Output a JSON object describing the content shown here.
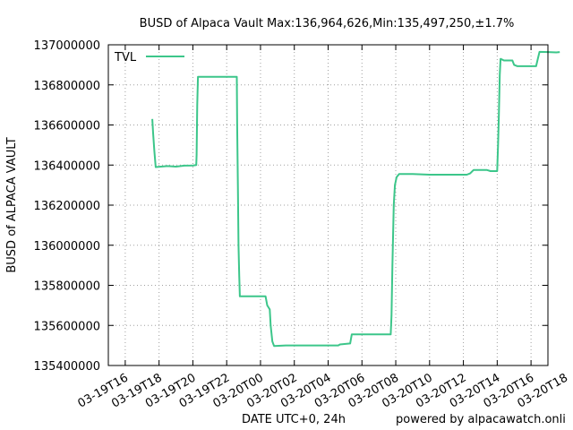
{
  "chart_data": {
    "type": "line",
    "title": "BUSD of Alpaca Vault Max:136,964,626,Min:135,497,250,±1.7%",
    "xlabel": "DATE UTC+0, 24h",
    "ylabel": "BUSD of ALPACA VAULT",
    "credit": "powered by alpacawatch.onli",
    "ylim": [
      135400000,
      137000000
    ],
    "xlim": [
      -1,
      25
    ],
    "grid": true,
    "legend_position": "top-left",
    "y_ticks": [
      "135400000",
      "135600000",
      "135800000",
      "136000000",
      "136200000",
      "136400000",
      "136600000",
      "136800000",
      "137000000"
    ],
    "x_ticks": [
      {
        "label": "03-19T16",
        "hours": 0
      },
      {
        "label": "03-19T18",
        "hours": 2
      },
      {
        "label": "03-19T20",
        "hours": 4
      },
      {
        "label": "03-19T22",
        "hours": 6
      },
      {
        "label": "03-20T00",
        "hours": 8
      },
      {
        "label": "03-20T02",
        "hours": 10
      },
      {
        "label": "03-20T04",
        "hours": 12
      },
      {
        "label": "03-20T06",
        "hours": 14
      },
      {
        "label": "03-20T08",
        "hours": 16
      },
      {
        "label": "03-20T10",
        "hours": 18
      },
      {
        "label": "03-20T12",
        "hours": 20
      },
      {
        "label": "03-20T14",
        "hours": 22
      },
      {
        "label": "03-20T16",
        "hours": 24
      },
      {
        "label": "03-20T18",
        "hours": 26
      }
    ],
    "series": [
      {
        "name": "TVL",
        "color": "#3cc68a",
        "points": [
          [
            1.6,
            136630000
          ],
          [
            1.65,
            136560000
          ],
          [
            1.72,
            136470000
          ],
          [
            1.8,
            136390000
          ],
          [
            2.5,
            136395000
          ],
          [
            3.0,
            136392000
          ],
          [
            3.5,
            136397000
          ],
          [
            4.0,
            136398000
          ],
          [
            4.2,
            136400000
          ],
          [
            4.22,
            136450000
          ],
          [
            4.26,
            136700000
          ],
          [
            4.3,
            136840000
          ],
          [
            5.0,
            136840000
          ],
          [
            6.0,
            136840000
          ],
          [
            6.6,
            136840000
          ],
          [
            6.62,
            136600000
          ],
          [
            6.66,
            136300000
          ],
          [
            6.7,
            136000000
          ],
          [
            6.74,
            135850000
          ],
          [
            6.78,
            135745000
          ],
          [
            7.5,
            135745000
          ],
          [
            8.3,
            135745000
          ],
          [
            8.4,
            135700000
          ],
          [
            8.55,
            135680000
          ],
          [
            8.6,
            135600000
          ],
          [
            8.7,
            135520000
          ],
          [
            8.8,
            135497250
          ],
          [
            9.5,
            135500000
          ],
          [
            10.5,
            135500000
          ],
          [
            11.5,
            135500000
          ],
          [
            12.6,
            135500000
          ],
          [
            12.7,
            135505000
          ],
          [
            13.3,
            135510000
          ],
          [
            13.4,
            135555000
          ],
          [
            14.5,
            135555000
          ],
          [
            15.7,
            135555000
          ],
          [
            15.75,
            135650000
          ],
          [
            15.8,
            135900000
          ],
          [
            15.88,
            136200000
          ],
          [
            15.95,
            136300000
          ],
          [
            16.05,
            136340000
          ],
          [
            16.2,
            136355000
          ],
          [
            17.0,
            136355000
          ],
          [
            18.0,
            136352000
          ],
          [
            19.0,
            136352000
          ],
          [
            20.2,
            136352000
          ],
          [
            20.4,
            136358000
          ],
          [
            20.6,
            136375000
          ],
          [
            21.4,
            136375000
          ],
          [
            21.6,
            136370000
          ],
          [
            22.0,
            136370000
          ],
          [
            22.05,
            136500000
          ],
          [
            22.1,
            136650000
          ],
          [
            22.15,
            136850000
          ],
          [
            22.2,
            136930000
          ],
          [
            22.4,
            136922000
          ],
          [
            22.9,
            136922000
          ],
          [
            23.0,
            136900000
          ],
          [
            23.2,
            136893000
          ],
          [
            24.3,
            136893000
          ],
          [
            24.4,
            136930000
          ],
          [
            24.5,
            136964626
          ],
          [
            25.0,
            136964000
          ],
          [
            25.5,
            136962000
          ],
          [
            25.7,
            136964000
          ]
        ]
      }
    ]
  }
}
